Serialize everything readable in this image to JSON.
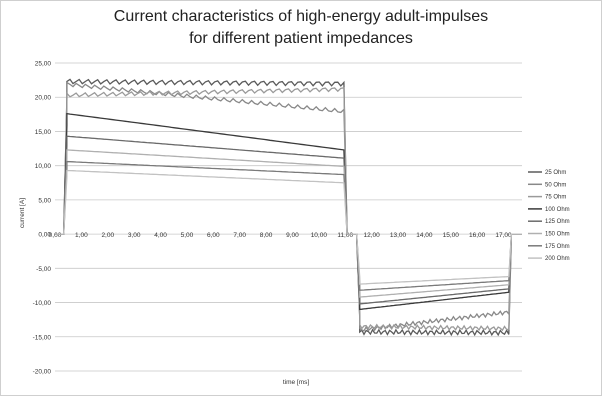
{
  "chart_data": {
    "type": "line",
    "title_line1": "Current characteristics of high-energy adult-impulses",
    "title_line2": "for different patient impedances",
    "xlabel": "time [ms]",
    "ylabel": "current [A]",
    "xlim": [
      0,
      17.7
    ],
    "ylim": [
      -20,
      25
    ],
    "y_ticks": [
      25,
      20,
      15,
      10,
      5,
      0,
      -5,
      -10,
      -15,
      -20
    ],
    "y_tick_labels": [
      "25,00",
      "20,00",
      "15,00",
      "10,00",
      "5,00",
      "0,00",
      "-5,00",
      "-10,00",
      "-15,00",
      "-20,00"
    ],
    "x_ticks": [
      0,
      1,
      2,
      3,
      4,
      5,
      6,
      7,
      8,
      9,
      10,
      11,
      12,
      13,
      14,
      15,
      16,
      17
    ],
    "x_tick_labels": [
      "0,00",
      "1,00",
      "2,00",
      "3,00",
      "4,00",
      "5,00",
      "6,00",
      "7,00",
      "8,00",
      "9,00",
      "10,00",
      "11,00",
      "12,00",
      "13,00",
      "14,00",
      "15,00",
      "16,00",
      "17,00"
    ],
    "grid": "horizontal",
    "legend_position": "right",
    "phase1": [
      0.45,
      10.95
    ],
    "phase2": [
      11.55,
      17.2
    ],
    "series": [
      {
        "name": "25 Ohm",
        "color": "#5a5a5a",
        "p1_start": 22.3,
        "p1_end": 22.0,
        "p2_start": -14.3,
        "p2_end": -14.4,
        "ripple": 0.35
      },
      {
        "name": "50 Ohm",
        "color": "#888888",
        "p1_start": 21.9,
        "p1_end": 17.9,
        "p2_start": -14.0,
        "p2_end": -11.4,
        "ripple": 0.3
      },
      {
        "name": "75 Ohm",
        "color": "#9a9a9a",
        "p1_start": 20.3,
        "p1_end": 21.2,
        "p2_start": -13.5,
        "p2_end": -13.8,
        "ripple": 0.3
      },
      {
        "name": "100 Ohm",
        "color": "#3a3a3a",
        "p1_start": 17.6,
        "p1_end": 12.3,
        "p2_start": -11.0,
        "p2_end": -8.5,
        "ripple": 0
      },
      {
        "name": "125 Ohm",
        "color": "#6a6a6a",
        "p1_start": 14.3,
        "p1_end": 11.1,
        "p2_start": -10.2,
        "p2_end": -8.0,
        "ripple": 0
      },
      {
        "name": "150 Ohm",
        "color": "#b0b0b0",
        "p1_start": 12.3,
        "p1_end": 9.9,
        "p2_start": -9.2,
        "p2_end": -7.4,
        "ripple": 0
      },
      {
        "name": "175 Ohm",
        "color": "#7a7a7a",
        "p1_start": 10.6,
        "p1_end": 8.7,
        "p2_start": -8.2,
        "p2_end": -6.8,
        "ripple": 0
      },
      {
        "name": "200 Ohm",
        "color": "#c2c2c2",
        "p1_start": 9.3,
        "p1_end": 7.5,
        "p2_start": -7.3,
        "p2_end": -6.2,
        "ripple": 0
      }
    ]
  }
}
